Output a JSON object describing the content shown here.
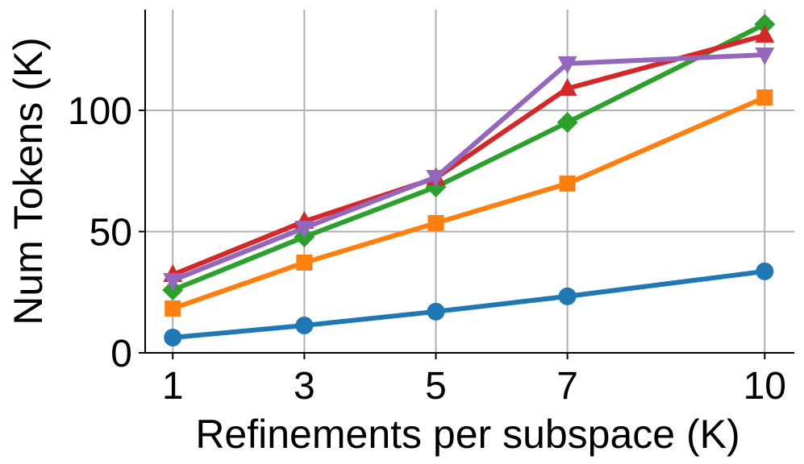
{
  "chart_data": {
    "type": "line",
    "x_label": "Refinements per subspace (K)",
    "y_label": "Num Tokens (K)",
    "x": [
      1,
      3,
      5,
      7,
      10
    ],
    "series": [
      {
        "color": "#1f77b4",
        "marker": "circle",
        "values": [
          6.3,
          11.3,
          17,
          23.3,
          33.6
        ]
      },
      {
        "color": "#ff7f0e",
        "marker": "square",
        "values": [
          18.3,
          37.2,
          53.5,
          69.8,
          105.3
        ]
      },
      {
        "color": "#2ca02c",
        "marker": "diamond",
        "values": [
          25.9,
          47.8,
          68.4,
          95,
          135.5
        ]
      },
      {
        "color": "#d62728",
        "marker": "triangle-up",
        "values": [
          32.2,
          54.2,
          72.1,
          109,
          130.9
        ]
      },
      {
        "color": "#9467bd",
        "marker": "triangle-down",
        "values": [
          29.9,
          51.5,
          72.4,
          119.3,
          122.9
        ]
      }
    ],
    "xlim": [
      0.58,
      10.45
    ],
    "ylim": [
      0,
      141.5
    ],
    "xticks": [
      1,
      3,
      5,
      7,
      10
    ],
    "yticks": [
      0,
      50,
      100
    ],
    "grid": true
  }
}
